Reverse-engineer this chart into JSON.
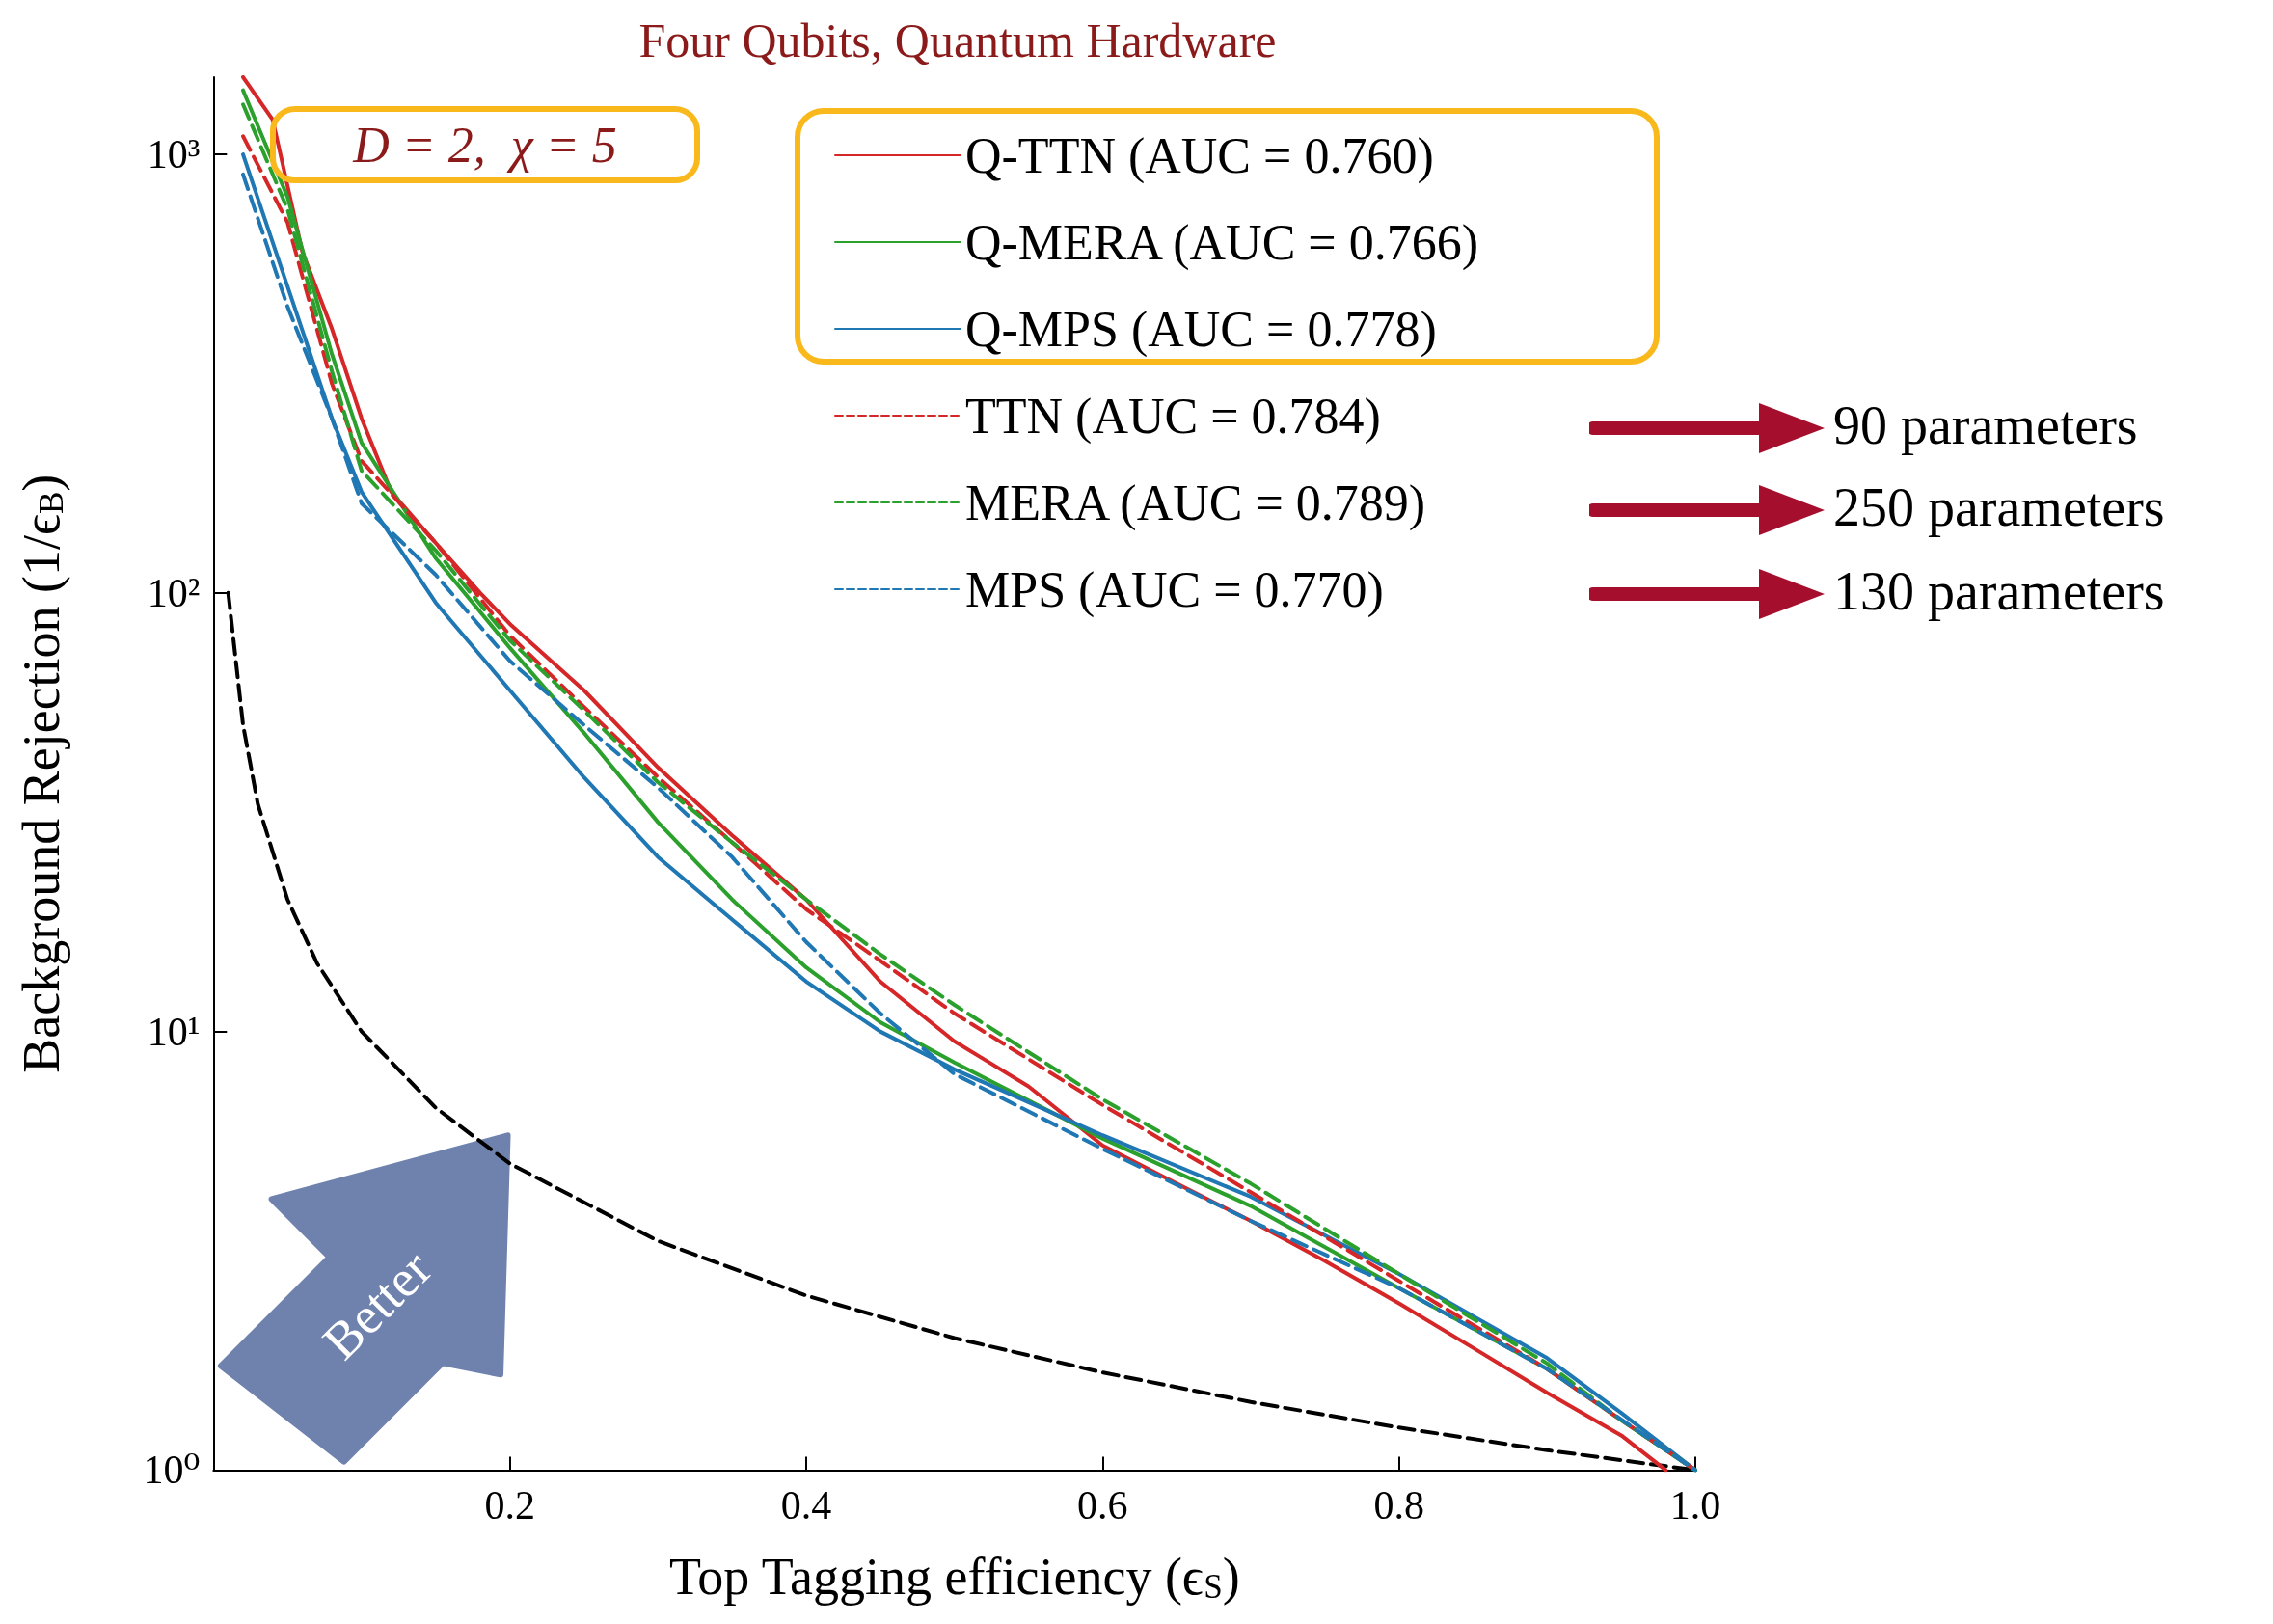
{
  "chart_data": {
    "type": "line",
    "title": "Four Qubits, Quantum Hardware",
    "xlabel": "Top Tagging efficiency (ϵ$_{S}$)",
    "ylabel": "Background Rejection (1/ϵ$_{B}$)",
    "xlim": [
      0,
      1
    ],
    "xticks": [
      0.2,
      0.4,
      0.6,
      0.8,
      {
        "value": 1,
        "label": "1.0"
      }
    ],
    "ylim": [
      1,
      1500
    ],
    "yticks": [
      {
        "value": 1,
        "label": "10⁰"
      },
      {
        "value": 10,
        "label": "10¹"
      },
      {
        "value": 100,
        "label": "10²"
      },
      {
        "value": 1000,
        "label": "10³"
      }
    ],
    "log": "y",
    "grid": false,
    "legend": "top right",
    "marker": "none",
    "annotations": [
      "D = 2,  χ = 5",
      "90 parameters",
      "250 parameters",
      "130 parameters",
      "Better"
    ],
    "series": [
      {
        "name": "Q-TTN (AUC = 0.760)",
        "color": "#d62728",
        "line_style": "solid",
        "x": [
          0.02,
          0.04,
          0.06,
          0.08,
          0.1,
          0.12,
          0.15,
          0.18,
          0.2,
          0.25,
          0.3,
          0.35,
          0.4,
          0.45,
          0.5,
          0.55,
          0.6,
          0.65,
          0.7,
          0.75,
          0.8,
          0.85,
          0.9,
          0.95,
          0.98
        ],
        "values": [
          1500,
          1200,
          600,
          400,
          250,
          170,
          130,
          100,
          85,
          60,
          40,
          28,
          20,
          13,
          9.5,
          7.5,
          5.5,
          4.5,
          3.7,
          3.0,
          2.4,
          1.9,
          1.5,
          1.2,
          1.0
        ]
      },
      {
        "name": "Q-MERA (AUC = 0.766)",
        "color": "#2ca02c",
        "line_style": "solid",
        "x": [
          0.02,
          0.05,
          0.08,
          0.1,
          0.15,
          0.2,
          0.25,
          0.3,
          0.35,
          0.4,
          0.45,
          0.5,
          0.6,
          0.7,
          0.8,
          0.9,
          0.95,
          1.0
        ],
        "values": [
          1400,
          800,
          350,
          220,
          120,
          75,
          48,
          30,
          20,
          14,
          10.5,
          8.5,
          5.7,
          4.0,
          2.6,
          1.7,
          1.3,
          1.0
        ]
      },
      {
        "name": "Q-MPS (AUC = 0.778)",
        "color": "#1f77b4",
        "line_style": "solid",
        "x": [
          0.02,
          0.05,
          0.08,
          0.1,
          0.15,
          0.2,
          0.25,
          0.3,
          0.35,
          0.4,
          0.45,
          0.5,
          0.6,
          0.7,
          0.8,
          0.9,
          0.95,
          1.0
        ],
        "values": [
          1000,
          500,
          250,
          170,
          95,
          60,
          38,
          25,
          18,
          13,
          10,
          8.2,
          5.8,
          4.2,
          2.8,
          1.8,
          1.35,
          1.0
        ]
      },
      {
        "name": "TTN (AUC = 0.784)",
        "color": "#d62728",
        "line_style": "dashed",
        "x": [
          0.02,
          0.05,
          0.08,
          0.1,
          0.15,
          0.2,
          0.25,
          0.3,
          0.35,
          0.4,
          0.45,
          0.5,
          0.6,
          0.7,
          0.8,
          0.9,
          0.95,
          1.0
        ],
        "values": [
          1100,
          700,
          300,
          200,
          130,
          80,
          55,
          38,
          27,
          19,
          14.5,
          11,
          6.8,
          4.3,
          2.7,
          1.7,
          1.3,
          1.0
        ]
      },
      {
        "name": "MERA (AUC = 0.789)",
        "color": "#2ca02c",
        "line_style": "dashed",
        "x": [
          0.02,
          0.05,
          0.08,
          0.1,
          0.15,
          0.2,
          0.25,
          0.3,
          0.35,
          0.4,
          0.45,
          0.5,
          0.6,
          0.7,
          0.8,
          0.9,
          0.95,
          1.0
        ],
        "values": [
          1300,
          750,
          320,
          190,
          125,
          78,
          54,
          37,
          27,
          20,
          15,
          11.5,
          7.0,
          4.5,
          2.8,
          1.75,
          1.3,
          1.0
        ]
      },
      {
        "name": "MPS (AUC = 0.770)",
        "color": "#1f77b4",
        "line_style": "dashed",
        "x": [
          0.02,
          0.05,
          0.08,
          0.1,
          0.15,
          0.2,
          0.25,
          0.3,
          0.35,
          0.4,
          0.45,
          0.5,
          0.6,
          0.7,
          0.8,
          0.9,
          1.0
        ],
        "values": [
          900,
          450,
          250,
          160,
          110,
          70,
          50,
          36,
          25,
          16,
          11,
          8.0,
          5.4,
          3.7,
          2.6,
          1.7,
          1.0
        ]
      },
      {
        "color": "#000000",
        "line_style": "dashed",
        "x": [
          0.01,
          0.02,
          0.03,
          0.05,
          0.07,
          0.1,
          0.15,
          0.2,
          0.3,
          0.4,
          0.5,
          0.6,
          0.7,
          0.8,
          0.9,
          1.0
        ],
        "values": [
          100,
          50,
          33,
          20,
          14.3,
          10,
          6.7,
          5,
          3.33,
          2.5,
          2,
          1.67,
          1.43,
          1.25,
          1.11,
          1
        ]
      }
    ]
  }
}
